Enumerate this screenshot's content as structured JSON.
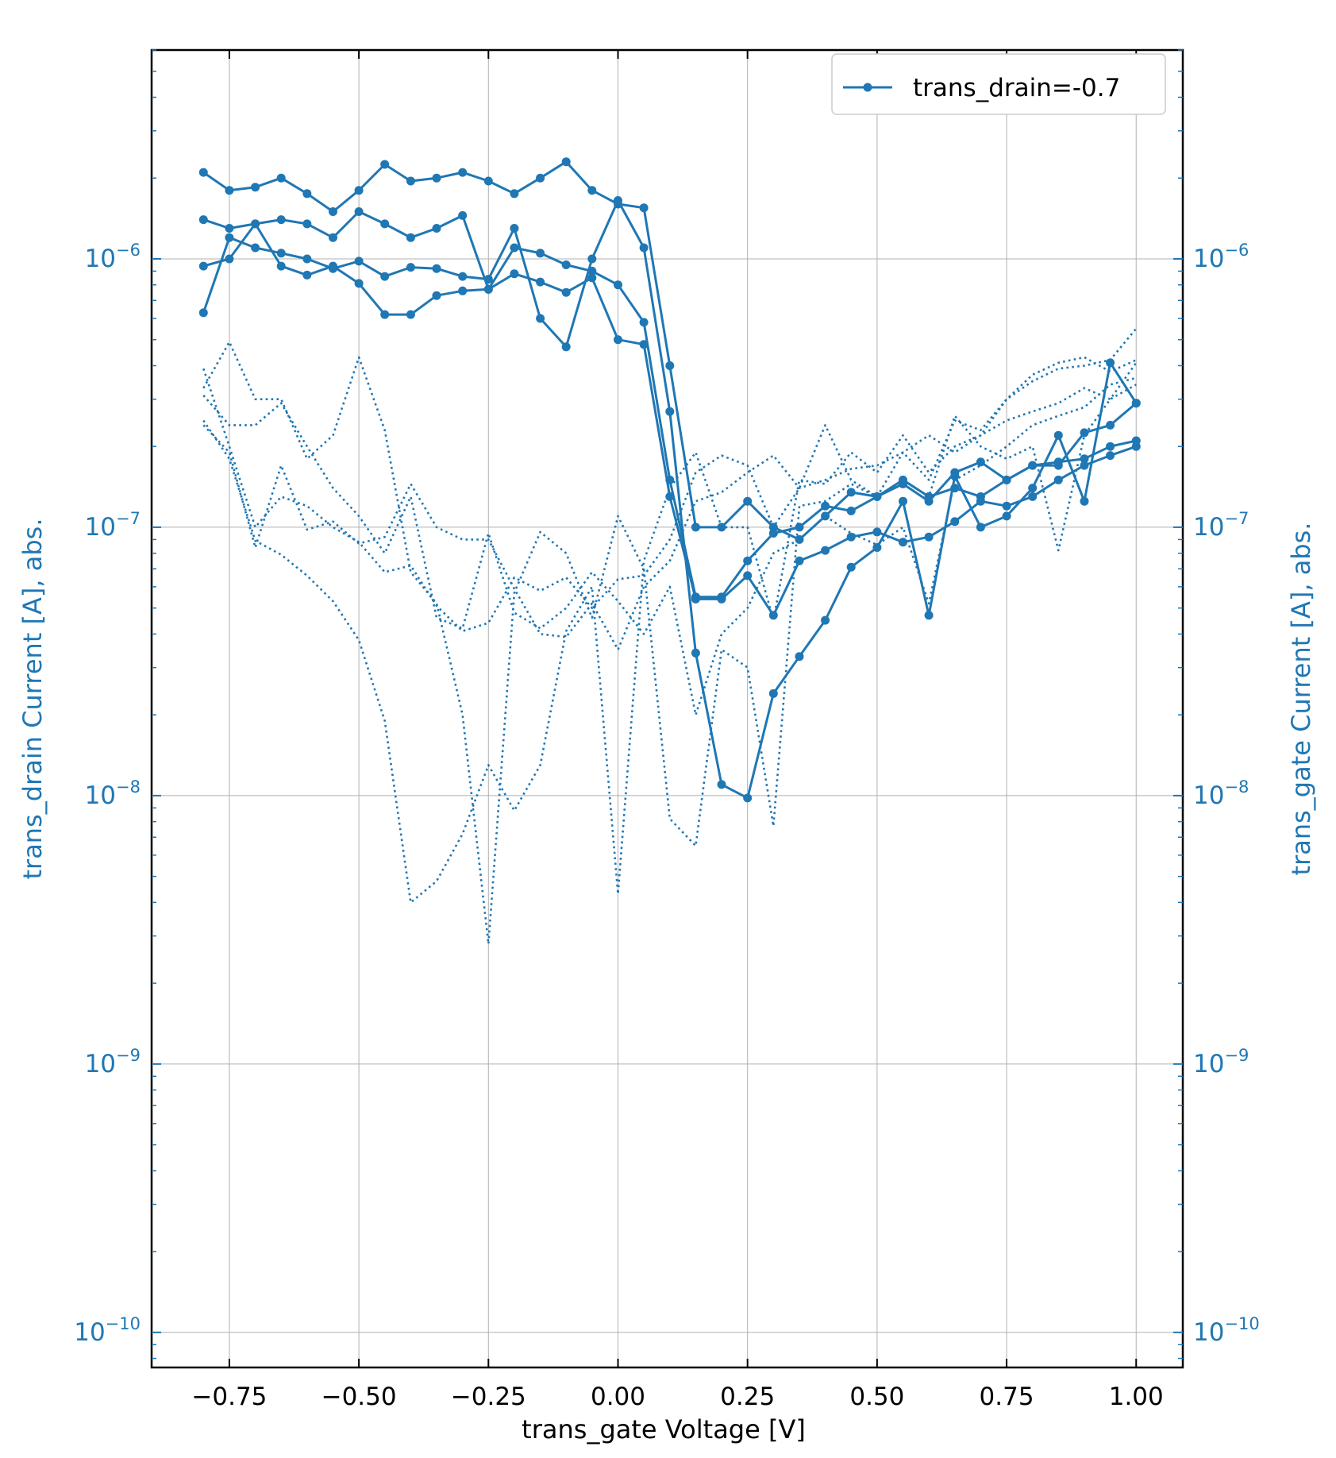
{
  "chart_data": {
    "type": "line",
    "xlabel": "trans_gate Voltage [V]",
    "ylabel_left": "trans_drain Current [A], abs.",
    "ylabel_right": "trans_gate Current [A], abs.",
    "yscale": "log",
    "xlim": [
      -0.9,
      1.09
    ],
    "ylim": [
      7.4e-11,
      6e-06
    ],
    "x_ticks": [
      -0.75,
      -0.5,
      -0.25,
      0.0,
      0.25,
      0.5,
      0.75,
      1.0
    ],
    "x_tick_labels": [
      "−0.75",
      "−0.50",
      "−0.25",
      "0.00",
      "0.25",
      "0.50",
      "0.75",
      "1.00"
    ],
    "y_ticks": [
      1e-10,
      1e-09,
      1e-08,
      1e-07,
      1e-06
    ],
    "y_tick_labels": [
      {
        "base": "10",
        "exp": "−10"
      },
      {
        "base": "10",
        "exp": "−9"
      },
      {
        "base": "10",
        "exp": "−8"
      },
      {
        "base": "10",
        "exp": "−7"
      },
      {
        "base": "10",
        "exp": "−6"
      }
    ],
    "grid": true,
    "legend": {
      "position": "upper-right",
      "label": "trans_drain=-0.7"
    },
    "colors": {
      "series": "#1f77b4",
      "axes": "#000000",
      "grid": "#b0b0b0"
    },
    "x": [
      -0.8,
      -0.75,
      -0.7,
      -0.65,
      -0.6,
      -0.55,
      -0.5,
      -0.45,
      -0.4,
      -0.35,
      -0.3,
      -0.25,
      -0.2,
      -0.15,
      -0.1,
      -0.05,
      0.0,
      0.05,
      0.1,
      0.15,
      0.2,
      0.25,
      0.3,
      0.35,
      0.4,
      0.45,
      0.5,
      0.55,
      0.6,
      0.65,
      0.7,
      0.75,
      0.8,
      0.85,
      0.9,
      0.95,
      1.0
    ],
    "drain_sweeps": [
      {
        "style": "solid-marker",
        "values": [
          2.1e-06,
          1.8e-06,
          1.85e-06,
          2e-06,
          1.75e-06,
          1.5e-06,
          1.8e-06,
          2.25e-06,
          1.95e-06,
          2e-06,
          2.1e-06,
          1.95e-06,
          1.75e-06,
          2e-06,
          2.3e-06,
          1.8e-06,
          1.6e-06,
          1.55e-06,
          4e-07,
          1e-07,
          1e-07,
          1.25e-07,
          1e-07,
          9e-08,
          1.1e-07,
          1.35e-07,
          1.3e-07,
          1.5e-07,
          1.3e-07,
          1.4e-07,
          1.3e-07,
          1.5e-07,
          1.7e-07,
          1.75e-07,
          1.8e-07,
          2e-07,
          2.1e-07
        ]
      },
      {
        "style": "solid-marker",
        "values": [
          1.4e-06,
          1.3e-06,
          1.35e-06,
          1.4e-06,
          1.35e-06,
          1.2e-06,
          1.5e-06,
          1.35e-06,
          1.2e-06,
          1.3e-06,
          1.45e-06,
          7.7e-07,
          1.1e-06,
          1.05e-06,
          9.5e-07,
          9e-07,
          8e-07,
          5.8e-07,
          1.5e-07,
          5.5e-08,
          5.5e-08,
          7.5e-08,
          9.5e-08,
          1e-07,
          1.2e-07,
          1.15e-07,
          1.3e-07,
          1.45e-07,
          1.25e-07,
          1.6e-07,
          1.75e-07,
          1.5e-07,
          1.7e-07,
          1.7e-07,
          2.25e-07,
          2.4e-07,
          2.9e-07
        ]
      },
      {
        "style": "solid-marker",
        "values": [
          6.3e-07,
          1.2e-06,
          1.1e-06,
          1.05e-06,
          1e-06,
          9.2e-07,
          9.8e-07,
          8.6e-07,
          9.3e-07,
          9.2e-07,
          8.6e-07,
          8.4e-07,
          1.3e-06,
          6e-07,
          4.7e-07,
          1e-06,
          1.65e-06,
          1.1e-06,
          2.7e-07,
          3.4e-08,
          1.1e-08,
          9.8e-09,
          2.4e-08,
          3.3e-08,
          4.5e-08,
          7.1e-08,
          8.4e-08,
          1.25e-07,
          4.7e-08,
          1.55e-07,
          1e-07,
          1.1e-07,
          1.4e-07,
          2.2e-07,
          1.25e-07,
          4.1e-07,
          2.9e-07
        ]
      },
      {
        "style": "solid-marker",
        "values": [
          9.4e-07,
          1e-06,
          1.35e-06,
          9.4e-07,
          8.7e-07,
          9.4e-07,
          8.1e-07,
          6.2e-07,
          6.2e-07,
          7.3e-07,
          7.6e-07,
          7.7e-07,
          8.8e-07,
          8.2e-07,
          7.5e-07,
          8.5e-07,
          5e-07,
          4.8e-07,
          1.3e-07,
          5.4e-08,
          5.4e-08,
          6.6e-08,
          4.7e-08,
          7.5e-08,
          8.2e-08,
          9.2e-08,
          9.6e-08,
          8.8e-08,
          9.2e-08,
          1.05e-07,
          1.25e-07,
          1.2e-07,
          1.3e-07,
          1.5e-07,
          1.7e-07,
          1.85e-07,
          2e-07
        ]
      }
    ],
    "gate_sweeps": [
      {
        "style": "dotted",
        "values": [
          3.9e-07,
          2e-07,
          1e-07,
          1.3e-07,
          1.2e-07,
          1e-07,
          8.8e-08,
          6.8e-08,
          7.2e-08,
          5.1e-08,
          4.1e-08,
          4.4e-08,
          6.5e-08,
          5.8e-08,
          6.5e-08,
          5e-08,
          6.4e-08,
          6.6e-08,
          9e-08,
          1.6e-07,
          1.85e-07,
          1.7e-07,
          1e-07,
          1.4e-07,
          2.4e-07,
          1.5e-07,
          1.3e-07,
          1.9e-07,
          1.5e-07,
          2.5e-07,
          2.3e-07,
          3e-07,
          3.5e-07,
          3.9e-07,
          4e-07,
          4.2e-07,
          5.5e-07
        ]
      },
      {
        "style": "dotted",
        "values": [
          2.4e-07,
          1.9e-07,
          8.4e-08,
          1.7e-07,
          9.8e-08,
          1.05e-07,
          8.7e-08,
          9.2e-08,
          1.45e-07,
          1e-07,
          9e-08,
          9e-08,
          5.9e-08,
          4e-08,
          3.9e-08,
          5.2e-08,
          3.5e-08,
          6e-08,
          7.5e-08,
          1.25e-07,
          1.35e-07,
          1.6e-07,
          1.85e-07,
          1.4e-07,
          1.5e-07,
          1.65e-07,
          1.7e-07,
          1.9e-07,
          2.2e-07,
          1.9e-07,
          2.2e-07,
          3e-07,
          3.7e-07,
          4.1e-07,
          4.3e-07,
          3.8e-07,
          4.2e-07
        ]
      },
      {
        "style": "dotted",
        "values": [
          3.3e-07,
          4.9e-07,
          3e-07,
          3e-07,
          1.8e-07,
          2.2e-07,
          4.3e-07,
          2.3e-07,
          6.8e-08,
          5.2e-08,
          2e-08,
          2.8e-09,
          5.7e-08,
          9.6e-08,
          8e-08,
          4.6e-08,
          1.1e-07,
          7e-08,
          8.2e-09,
          6.5e-09,
          3.5e-08,
          3e-08,
          7.7e-09,
          1.2e-07,
          1.25e-07,
          1.45e-07,
          1.3e-07,
          1.5e-07,
          1.3e-07,
          2.6e-07,
          2e-07,
          1.8e-07,
          2e-07,
          8.2e-08,
          2.2e-07,
          3e-07,
          3.4e-07
        ]
      },
      {
        "style": "dotted",
        "values": [
          2.5e-07,
          1.8e-07,
          8.9e-08,
          7.9e-08,
          6.6e-08,
          5.3e-08,
          3.8e-08,
          1.9e-08,
          4e-09,
          4.8e-09,
          7.2e-09,
          1.3e-08,
          8.8e-09,
          1.3e-08,
          4.1e-08,
          6e-08,
          4.3e-09,
          7.5e-08,
          1.4e-07,
          1.9e-07,
          1e-07,
          1e-07,
          4.5e-08,
          1.5e-07,
          1.45e-07,
          1.9e-07,
          1.6e-07,
          2.2e-07,
          1.6e-07,
          2e-07,
          2.2e-07,
          2.5e-07,
          2.7e-07,
          2.9e-07,
          3.3e-07,
          3e-07,
          4.1e-07
        ]
      },
      {
        "style": "dotted",
        "values": [
          3.1e-07,
          2.4e-07,
          2.4e-07,
          2.9e-07,
          2e-07,
          1.4e-07,
          1.1e-07,
          8e-08,
          1.3e-07,
          4.6e-08,
          4.2e-08,
          9.5e-08,
          4.8e-08,
          4.2e-08,
          5e-08,
          6.8e-08,
          5.3e-08,
          4e-08,
          6e-08,
          2e-08,
          4e-08,
          5e-08,
          8e-08,
          9e-08,
          1.1e-07,
          9.5e-08,
          8.6e-08,
          1e-07,
          5.2e-08,
          1.5e-07,
          1.7e-07,
          2e-07,
          2.4e-07,
          2.6e-07,
          2.8e-07,
          3.4e-07,
          3.6e-07
        ]
      }
    ]
  }
}
